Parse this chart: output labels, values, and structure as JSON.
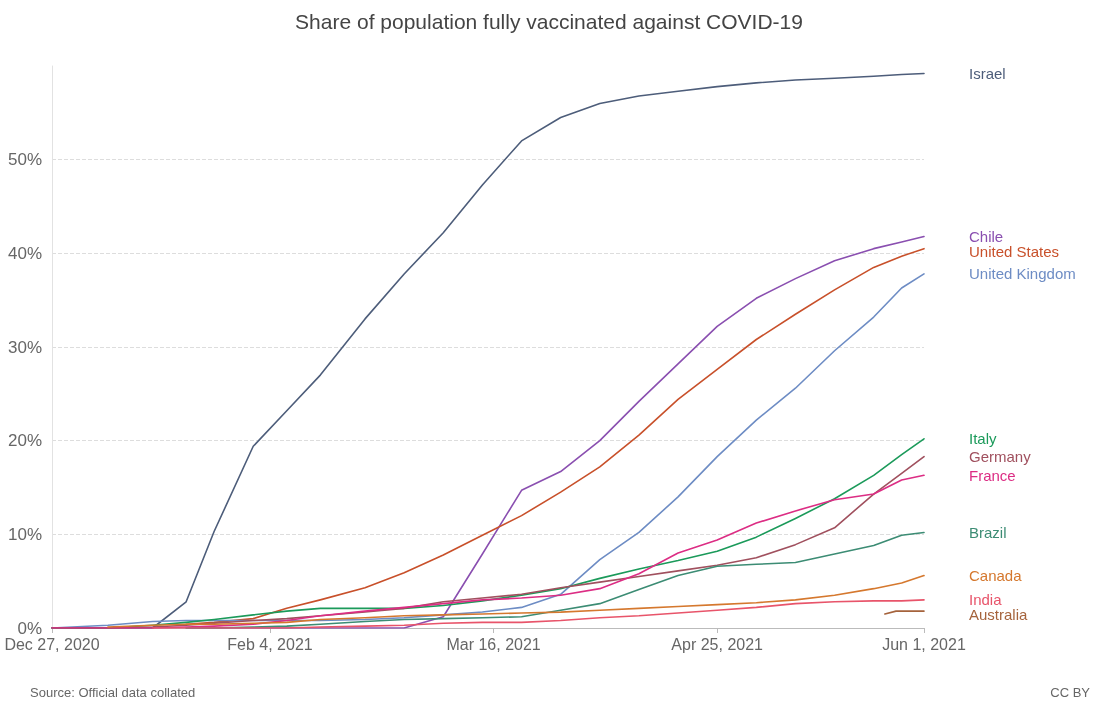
{
  "chart_data": {
    "type": "line",
    "title": "Share of population fully vaccinated against COVID-19",
    "x": [
      "2020-12-27",
      "2021-01-06",
      "2021-01-14",
      "2021-01-20",
      "2021-01-25",
      "2021-02-01",
      "2021-02-07",
      "2021-02-13",
      "2021-02-21",
      "2021-02-28",
      "2021-03-07",
      "2021-03-14",
      "2021-03-21",
      "2021-03-28",
      "2021-04-04",
      "2021-04-11",
      "2021-04-18",
      "2021-04-25",
      "2021-05-02",
      "2021-05-09",
      "2021-05-16",
      "2021-05-23",
      "2021-05-28",
      "2021-06-01"
    ],
    "series": [
      {
        "name": "Israel",
        "color": "#4d5d7a",
        "values": [
          0,
          0,
          0,
          2.8,
          10.3,
          19.4,
          23.2,
          27,
          33,
          37.8,
          42.2,
          47.3,
          52,
          54.5,
          56,
          56.8,
          57.3,
          57.8,
          58.2,
          58.5,
          58.7,
          58.9,
          59.1,
          59.2
        ]
      },
      {
        "name": "Chile",
        "color": "#8a4fb0",
        "values": [
          null,
          null,
          null,
          0,
          0,
          0,
          0,
          0,
          0,
          0,
          1.2,
          7.9,
          14.7,
          16.7,
          20,
          24.2,
          28.2,
          32.2,
          35.2,
          37.3,
          39.2,
          40.5,
          41.2,
          41.8
        ]
      },
      {
        "name": "United States",
        "color": "#c8502a",
        "values": [
          null,
          null,
          null,
          0.4,
          0.6,
          1,
          2.1,
          3,
          4.3,
          5.9,
          7.8,
          9.9,
          12,
          14.5,
          17.2,
          20.6,
          24.4,
          27.6,
          30.8,
          33.5,
          36.1,
          38.5,
          39.7,
          40.5
        ]
      },
      {
        "name": "United Kingdom",
        "color": "#6d8cc4",
        "values": [
          0,
          0.3,
          0.7,
          0.8,
          0.8,
          0.8,
          0.8,
          0.8,
          0.9,
          1.1,
          1.4,
          1.7,
          2.2,
          3.6,
          7.3,
          10.2,
          14,
          18.3,
          22.2,
          25.6,
          29.6,
          33.2,
          36.3,
          37.8
        ]
      },
      {
        "name": "Italy",
        "color": "#1b9a5a",
        "values": [
          0,
          0,
          0.3,
          0.6,
          0.9,
          1.4,
          1.8,
          2.1,
          2.1,
          2.1,
          2.4,
          2.9,
          3.5,
          4.2,
          5.3,
          6.3,
          7.2,
          8.2,
          9.7,
          11.7,
          13.8,
          16.3,
          18.5,
          20.2
        ]
      },
      {
        "name": "Germany",
        "color": "#a0505e",
        "values": [
          0,
          0,
          0.1,
          0.3,
          0.5,
          0.8,
          1,
          1.3,
          1.7,
          2.1,
          2.8,
          3.2,
          3.6,
          4.3,
          4.9,
          5.5,
          6.1,
          6.7,
          7.5,
          8.9,
          10.7,
          14.3,
          16.5,
          18.3
        ]
      },
      {
        "name": "France",
        "color": "#dc2d84",
        "values": [
          0,
          0,
          0,
          0.1,
          0.2,
          0.4,
          0.8,
          1.3,
          1.8,
          2.2,
          2.6,
          3,
          3.2,
          3.5,
          4.2,
          5.8,
          8,
          9.4,
          11.2,
          12.5,
          13.7,
          14.3,
          15.8,
          16.3
        ]
      },
      {
        "name": "Brazil",
        "color": "#3c8c74",
        "values": [
          null,
          null,
          null,
          0,
          0,
          0.1,
          0.2,
          0.4,
          0.7,
          0.9,
          1,
          1.1,
          1.2,
          1.9,
          2.6,
          4.1,
          5.6,
          6.6,
          6.8,
          7,
          7.9,
          8.8,
          9.9,
          10.2
        ]
      },
      {
        "name": "Canada",
        "color": "#d5782e",
        "values": [
          null,
          0.1,
          0.3,
          0.4,
          0.4,
          0.5,
          0.6,
          0.9,
          1.1,
          1.3,
          1.4,
          1.5,
          1.6,
          1.7,
          1.9,
          2.1,
          2.3,
          2.5,
          2.7,
          3,
          3.5,
          4.2,
          4.8,
          5.6
        ]
      },
      {
        "name": "India",
        "color": "#e8546a",
        "values": [
          null,
          null,
          0,
          0,
          0,
          0,
          0,
          0.1,
          0.2,
          0.3,
          0.5,
          0.6,
          0.6,
          0.8,
          1.1,
          1.3,
          1.6,
          1.9,
          2.2,
          2.6,
          2.8,
          2.9,
          2.9,
          3
        ]
      },
      {
        "name": "Australia",
        "color": "#a5633c",
        "x": [
          "2021-05-25",
          "2021-05-27",
          "2021-06-01"
        ],
        "values": [
          1.5,
          1.8,
          1.8
        ]
      }
    ],
    "xlim": [
      "2020-12-27",
      "2021-06-01"
    ],
    "xticks": [
      {
        "value": "2020-12-27",
        "label": "Dec 27, 2020"
      },
      {
        "value": "2021-02-04",
        "label": "Feb 4, 2021"
      },
      {
        "value": "2021-03-16",
        "label": "Mar 16, 2021"
      },
      {
        "value": "2021-04-25",
        "label": "Apr 25, 2021"
      },
      {
        "value": "2021-06-01",
        "label": "Jun 1, 2021"
      }
    ],
    "ylim": [
      0,
      60
    ],
    "yticks": [
      {
        "value": 0,
        "label": "0%"
      },
      {
        "value": 10,
        "label": "10%"
      },
      {
        "value": 20,
        "label": "20%"
      },
      {
        "value": 30,
        "label": "30%"
      },
      {
        "value": 40,
        "label": "40%"
      },
      {
        "value": 50,
        "label": "50%"
      }
    ],
    "grid": "y",
    "legend": false,
    "marker": "none",
    "line_style": "solid",
    "annotations": [
      "Source: Official data collated",
      "CC BY"
    ]
  }
}
